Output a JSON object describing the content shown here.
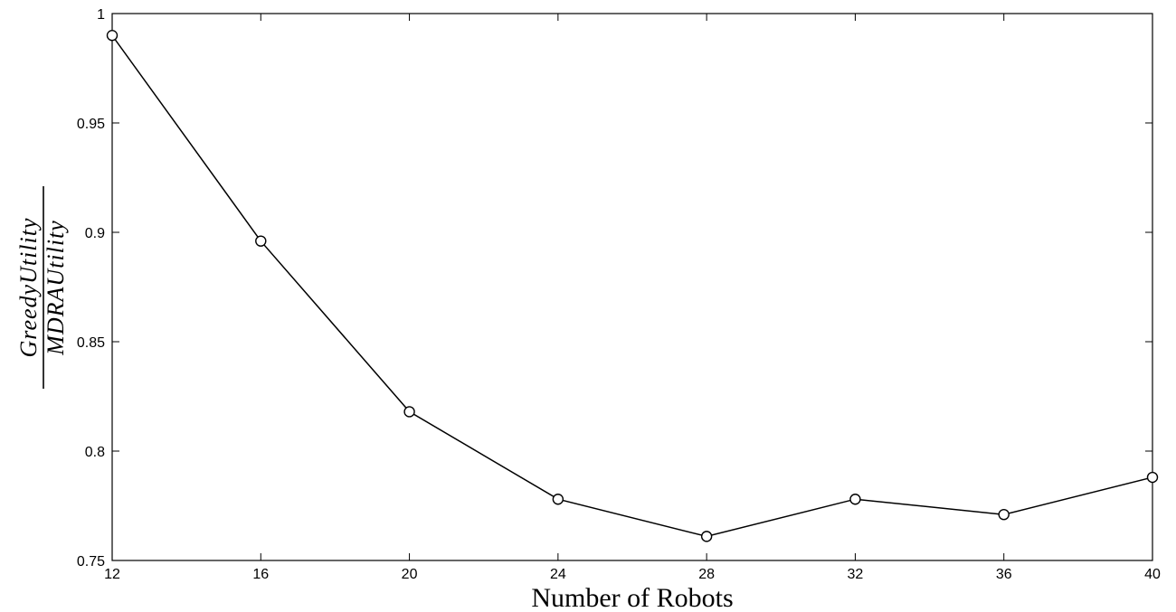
{
  "chart_data": {
    "type": "line",
    "x": [
      12,
      16,
      20,
      24,
      28,
      32,
      36,
      40
    ],
    "series": [
      {
        "values": [
          0.99,
          0.896,
          0.818,
          0.778,
          0.761,
          0.778,
          0.771,
          0.788
        ]
      }
    ],
    "xlabel": "Number of Robots",
    "ylabel": {
      "numerator": "GreedyUtility",
      "denominator": "MDRAUtility"
    },
    "xlim": [
      12,
      40
    ],
    "ylim": [
      0.75,
      1
    ],
    "xticks": [
      12,
      16,
      20,
      24,
      28,
      32,
      36,
      40
    ],
    "xtick_labels": [
      "12",
      "16",
      "20",
      "24",
      "28",
      "32",
      "36",
      "40"
    ],
    "yticks": [
      0.75,
      0.8,
      0.85,
      0.9,
      0.95,
      1
    ],
    "ytick_labels": [
      "0.75",
      "0.8",
      "0.85",
      "0.9",
      "0.95",
      "1"
    ],
    "marker": "circle",
    "line_color": "#000000",
    "grid": false
  }
}
